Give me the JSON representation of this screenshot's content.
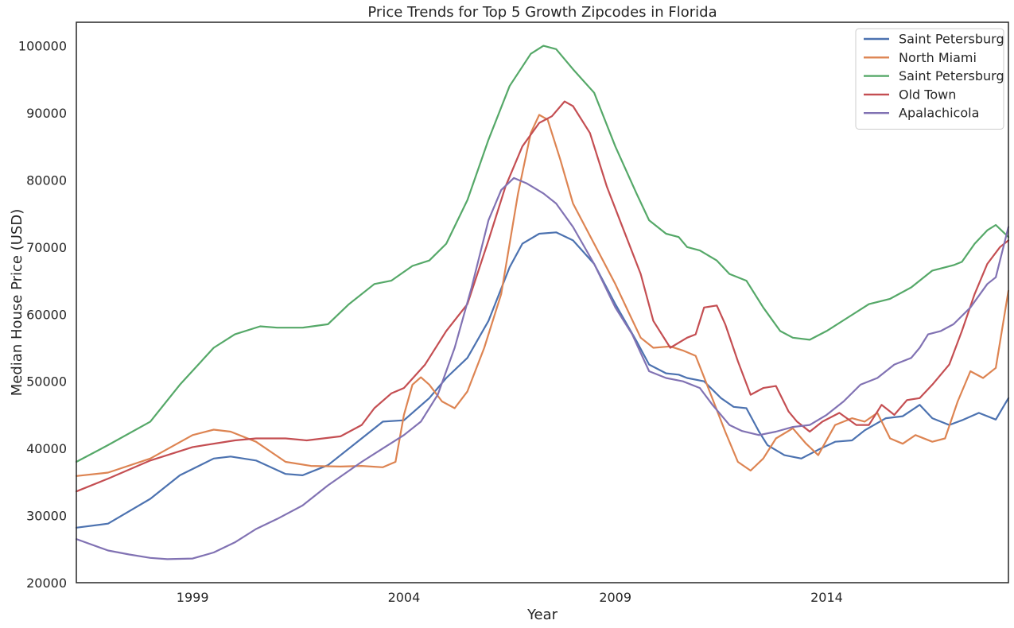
{
  "chart_data": {
    "type": "line",
    "title": "Price Trends for Top 5 Growth Zipcodes in Florida",
    "xlabel": "Year",
    "ylabel": "Median House Price (USD)",
    "xlim": [
      1996.25,
      2018.3
    ],
    "ylim": [
      20000,
      103500
    ],
    "x_ticks": [
      1999,
      2004,
      2009,
      2014
    ],
    "y_ticks": [
      20000,
      30000,
      40000,
      50000,
      60000,
      70000,
      80000,
      90000,
      100000
    ],
    "grid": false,
    "legend_position": "top-right",
    "series": [
      {
        "name": "Saint Petersburg",
        "color": "#4c72b0",
        "points": [
          [
            1996.25,
            28200
          ],
          [
            1997,
            28800
          ],
          [
            1998,
            32500
          ],
          [
            1998.7,
            36000
          ],
          [
            1999.5,
            38500
          ],
          [
            1999.9,
            38800
          ],
          [
            2000.5,
            38200
          ],
          [
            2001.2,
            36200
          ],
          [
            2001.6,
            36000
          ],
          [
            2002.2,
            37500
          ],
          [
            2003,
            41500
          ],
          [
            2003.5,
            44000
          ],
          [
            2004,
            44200
          ],
          [
            2004.6,
            47500
          ],
          [
            2005,
            50500
          ],
          [
            2005.5,
            53500
          ],
          [
            2006,
            59000
          ],
          [
            2006.5,
            67000
          ],
          [
            2006.8,
            70500
          ],
          [
            2007.2,
            72000
          ],
          [
            2007.6,
            72200
          ],
          [
            2008,
            71000
          ],
          [
            2008.5,
            67500
          ],
          [
            2009,
            61500
          ],
          [
            2009.5,
            56000
          ],
          [
            2009.8,
            52500
          ],
          [
            2010.2,
            51200
          ],
          [
            2010.5,
            51000
          ],
          [
            2010.7,
            50500
          ],
          [
            2011.1,
            50000
          ],
          [
            2011.5,
            47500
          ],
          [
            2011.8,
            46200
          ],
          [
            2012.1,
            46000
          ],
          [
            2012.4,
            42500
          ],
          [
            2012.6,
            40500
          ],
          [
            2013,
            39000
          ],
          [
            2013.4,
            38500
          ],
          [
            2013.8,
            39800
          ],
          [
            2014.2,
            41000
          ],
          [
            2014.6,
            41200
          ],
          [
            2014.9,
            42700
          ],
          [
            2015.4,
            44500
          ],
          [
            2015.8,
            44800
          ],
          [
            2016.2,
            46500
          ],
          [
            2016.5,
            44500
          ],
          [
            2016.9,
            43500
          ],
          [
            2017.2,
            44200
          ],
          [
            2017.6,
            45300
          ],
          [
            2018,
            44300
          ],
          [
            2018.3,
            47500
          ]
        ]
      },
      {
        "name": "North Miami",
        "color": "#dd8452",
        "points": [
          [
            1996.25,
            35900
          ],
          [
            1997,
            36400
          ],
          [
            1998,
            38500
          ],
          [
            1999,
            42000
          ],
          [
            1999.5,
            42800
          ],
          [
            1999.9,
            42500
          ],
          [
            2000.5,
            41000
          ],
          [
            2001.2,
            38000
          ],
          [
            2001.8,
            37400
          ],
          [
            2002.5,
            37300
          ],
          [
            2003,
            37400
          ],
          [
            2003.5,
            37200
          ],
          [
            2003.8,
            38000
          ],
          [
            2004,
            45000
          ],
          [
            2004.2,
            49500
          ],
          [
            2004.4,
            50600
          ],
          [
            2004.6,
            49500
          ],
          [
            2004.9,
            47000
          ],
          [
            2005.2,
            46000
          ],
          [
            2005.5,
            48500
          ],
          [
            2005.9,
            55000
          ],
          [
            2006.3,
            63000
          ],
          [
            2006.7,
            78000
          ],
          [
            2007,
            87000
          ],
          [
            2007.2,
            89700
          ],
          [
            2007.4,
            89000
          ],
          [
            2007.7,
            83000
          ],
          [
            2008,
            76500
          ],
          [
            2008.5,
            70500
          ],
          [
            2009,
            64500
          ],
          [
            2009.3,
            60500
          ],
          [
            2009.6,
            56500
          ],
          [
            2009.9,
            55000
          ],
          [
            2010.3,
            55200
          ],
          [
            2010.6,
            54600
          ],
          [
            2010.9,
            53800
          ],
          [
            2011.2,
            49000
          ],
          [
            2011.6,
            42500
          ],
          [
            2011.9,
            38000
          ],
          [
            2012.2,
            36700
          ],
          [
            2012.5,
            38500
          ],
          [
            2012.8,
            41500
          ],
          [
            2013.2,
            43000
          ],
          [
            2013.5,
            40800
          ],
          [
            2013.8,
            39000
          ],
          [
            2014.2,
            43500
          ],
          [
            2014.6,
            44500
          ],
          [
            2014.9,
            44000
          ],
          [
            2015.2,
            45300
          ],
          [
            2015.5,
            41500
          ],
          [
            2015.8,
            40700
          ],
          [
            2016.1,
            42000
          ],
          [
            2016.5,
            41000
          ],
          [
            2016.8,
            41500
          ],
          [
            2017.1,
            47000
          ],
          [
            2017.4,
            51500
          ],
          [
            2017.7,
            50500
          ],
          [
            2018,
            52000
          ],
          [
            2018.3,
            63500
          ]
        ]
      },
      {
        "name": "Saint Petersburg",
        "color": "#55a868",
        "points": [
          [
            1996.25,
            38000
          ],
          [
            1997,
            40500
          ],
          [
            1998,
            44000
          ],
          [
            1998.7,
            49500
          ],
          [
            1999.5,
            55000
          ],
          [
            2000,
            57000
          ],
          [
            2000.6,
            58200
          ],
          [
            2001,
            58000
          ],
          [
            2001.6,
            58000
          ],
          [
            2002.2,
            58500
          ],
          [
            2002.7,
            61500
          ],
          [
            2003.3,
            64500
          ],
          [
            2003.7,
            65000
          ],
          [
            2004.2,
            67200
          ],
          [
            2004.6,
            68000
          ],
          [
            2005,
            70500
          ],
          [
            2005.5,
            77000
          ],
          [
            2006,
            86000
          ],
          [
            2006.5,
            94000
          ],
          [
            2007,
            98800
          ],
          [
            2007.3,
            100000
          ],
          [
            2007.6,
            99500
          ],
          [
            2008,
            96500
          ],
          [
            2008.5,
            93000
          ],
          [
            2009,
            85000
          ],
          [
            2009.5,
            78000
          ],
          [
            2009.8,
            74000
          ],
          [
            2010.2,
            72000
          ],
          [
            2010.5,
            71500
          ],
          [
            2010.7,
            70000
          ],
          [
            2011,
            69500
          ],
          [
            2011.4,
            68000
          ],
          [
            2011.7,
            66000
          ],
          [
            2012.1,
            65000
          ],
          [
            2012.5,
            61000
          ],
          [
            2012.9,
            57500
          ],
          [
            2013.2,
            56500
          ],
          [
            2013.6,
            56200
          ],
          [
            2014,
            57500
          ],
          [
            2014.5,
            59500
          ],
          [
            2015,
            61500
          ],
          [
            2015.5,
            62300
          ],
          [
            2016,
            64000
          ],
          [
            2016.5,
            66500
          ],
          [
            2017,
            67300
          ],
          [
            2017.2,
            67800
          ],
          [
            2017.5,
            70500
          ],
          [
            2017.8,
            72500
          ],
          [
            2018,
            73300
          ],
          [
            2018.3,
            71500
          ]
        ]
      },
      {
        "name": "Old Town",
        "color": "#c44e52",
        "points": [
          [
            1996.25,
            33600
          ],
          [
            1997,
            35500
          ],
          [
            1998,
            38200
          ],
          [
            1999,
            40200
          ],
          [
            2000,
            41200
          ],
          [
            2000.5,
            41500
          ],
          [
            2001.2,
            41500
          ],
          [
            2001.7,
            41200
          ],
          [
            2002.5,
            41800
          ],
          [
            2003,
            43500
          ],
          [
            2003.3,
            46000
          ],
          [
            2003.7,
            48200
          ],
          [
            2004,
            49000
          ],
          [
            2004.5,
            52500
          ],
          [
            2005,
            57500
          ],
          [
            2005.5,
            61500
          ],
          [
            2006,
            71000
          ],
          [
            2006.4,
            79000
          ],
          [
            2006.8,
            85000
          ],
          [
            2007.2,
            88500
          ],
          [
            2007.5,
            89500
          ],
          [
            2007.8,
            91700
          ],
          [
            2008,
            91000
          ],
          [
            2008.4,
            87000
          ],
          [
            2008.8,
            79000
          ],
          [
            2009.2,
            72500
          ],
          [
            2009.6,
            66000
          ],
          [
            2009.9,
            59000
          ],
          [
            2010.3,
            55000
          ],
          [
            2010.7,
            56500
          ],
          [
            2010.9,
            57000
          ],
          [
            2011.1,
            61000
          ],
          [
            2011.4,
            61300
          ],
          [
            2011.6,
            58500
          ],
          [
            2011.9,
            53000
          ],
          [
            2012.2,
            48000
          ],
          [
            2012.5,
            49000
          ],
          [
            2012.8,
            49300
          ],
          [
            2013.1,
            45500
          ],
          [
            2013.3,
            44000
          ],
          [
            2013.6,
            42500
          ],
          [
            2013.9,
            44000
          ],
          [
            2014.3,
            45300
          ],
          [
            2014.7,
            43500
          ],
          [
            2015,
            43500
          ],
          [
            2015.3,
            46500
          ],
          [
            2015.6,
            45000
          ],
          [
            2015.9,
            47200
          ],
          [
            2016.2,
            47500
          ],
          [
            2016.5,
            49500
          ],
          [
            2016.9,
            52500
          ],
          [
            2017.2,
            57500
          ],
          [
            2017.5,
            63000
          ],
          [
            2017.8,
            67500
          ],
          [
            2018.1,
            70000
          ],
          [
            2018.3,
            71000
          ]
        ]
      },
      {
        "name": "Apalachicola",
        "color": "#8172b3",
        "points": [
          [
            1996.25,
            26500
          ],
          [
            1997,
            24800
          ],
          [
            1997.5,
            24200
          ],
          [
            1998,
            23700
          ],
          [
            1998.4,
            23500
          ],
          [
            1999,
            23600
          ],
          [
            1999.5,
            24500
          ],
          [
            2000,
            26000
          ],
          [
            2000.5,
            28000
          ],
          [
            2001,
            29500
          ],
          [
            2001.6,
            31500
          ],
          [
            2002.2,
            34500
          ],
          [
            2003,
            38000
          ],
          [
            2003.5,
            40000
          ],
          [
            2004,
            42000
          ],
          [
            2004.4,
            44000
          ],
          [
            2004.8,
            48000
          ],
          [
            2005.2,
            55000
          ],
          [
            2005.6,
            64000
          ],
          [
            2006,
            74000
          ],
          [
            2006.3,
            78500
          ],
          [
            2006.6,
            80300
          ],
          [
            2006.9,
            79500
          ],
          [
            2007.3,
            78000
          ],
          [
            2007.6,
            76500
          ],
          [
            2008,
            73000
          ],
          [
            2008.5,
            67500
          ],
          [
            2009,
            61000
          ],
          [
            2009.4,
            57000
          ],
          [
            2009.8,
            51500
          ],
          [
            2010.2,
            50500
          ],
          [
            2010.6,
            50000
          ],
          [
            2011,
            49000
          ],
          [
            2011.3,
            46500
          ],
          [
            2011.7,
            43500
          ],
          [
            2012,
            42600
          ],
          [
            2012.4,
            42000
          ],
          [
            2012.8,
            42500
          ],
          [
            2013.2,
            43200
          ],
          [
            2013.6,
            43500
          ],
          [
            2014,
            45000
          ],
          [
            2014.4,
            47000
          ],
          [
            2014.8,
            49500
          ],
          [
            2015.2,
            50500
          ],
          [
            2015.6,
            52500
          ],
          [
            2016,
            53500
          ],
          [
            2016.2,
            55000
          ],
          [
            2016.4,
            57000
          ],
          [
            2016.7,
            57500
          ],
          [
            2017,
            58500
          ],
          [
            2017.4,
            61000
          ],
          [
            2017.8,
            64500
          ],
          [
            2018,
            65500
          ],
          [
            2018.3,
            73000
          ]
        ]
      }
    ]
  }
}
